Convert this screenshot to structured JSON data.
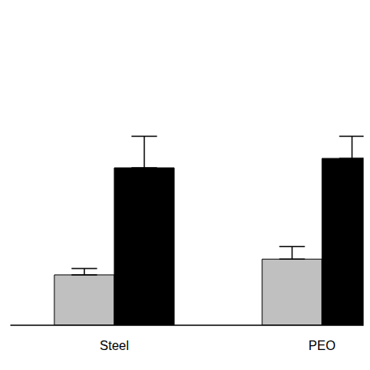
{
  "chart_data": {
    "type": "bar",
    "categories": [
      "Steel",
      "PEO"
    ],
    "series": [
      {
        "color": "#c0c0c0",
        "values": [
          16,
          21
        ],
        "errors": [
          2,
          4
        ]
      },
      {
        "color": "#000000",
        "values": [
          50,
          53
        ],
        "errors": [
          10,
          7
        ]
      }
    ],
    "ylim": [
      0,
      100
    ],
    "tick_labels": "x"
  }
}
